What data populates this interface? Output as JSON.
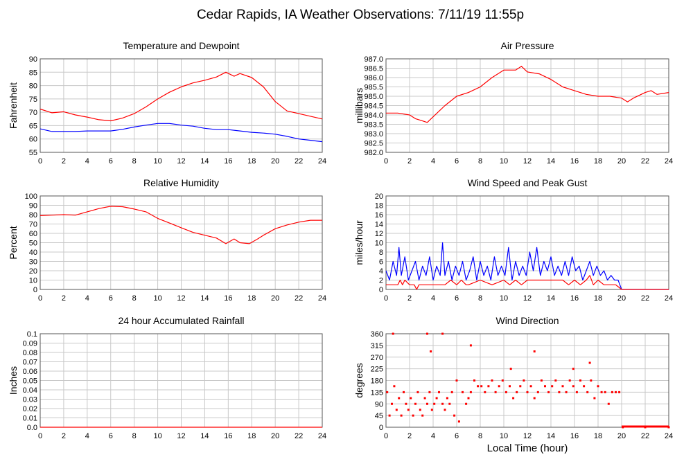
{
  "page": {
    "title": "Cedar Rapids, IA Weather Observations: 7/11/19 11:55p",
    "xlabel": "Local Time (hour)"
  },
  "chart_data": [
    {
      "id": "temp",
      "type": "line",
      "title": "Temperature and Dewpoint",
      "xlabel": "",
      "ylabel": "Fahrenheit",
      "xlim": [
        0,
        24
      ],
      "ylim": [
        55,
        90
      ],
      "xticks": [
        0,
        2,
        4,
        6,
        8,
        10,
        12,
        14,
        16,
        18,
        20,
        22,
        24
      ],
      "yticks": [
        55,
        60,
        65,
        70,
        75,
        80,
        85,
        90
      ],
      "grid": true,
      "series": [
        {
          "color": "#ff0000",
          "x": [
            0,
            1,
            2,
            3,
            4,
            5,
            6,
            7,
            8,
            9,
            10,
            11,
            12,
            13,
            14,
            15,
            15.8,
            16.5,
            17,
            18,
            19,
            20,
            21,
            22,
            23,
            24
          ],
          "y": [
            71.2,
            69.8,
            70.2,
            69,
            68.2,
            67.2,
            66.8,
            67.8,
            69.5,
            72,
            75,
            77.5,
            79.5,
            81,
            82,
            83.2,
            85,
            83.5,
            84.5,
            83,
            79.5,
            74,
            70.5,
            69.5,
            68.5,
            67.5
          ]
        },
        {
          "color": "#0000ff",
          "x": [
            0,
            1,
            2,
            3,
            4,
            5,
            6,
            7,
            8,
            9,
            10,
            11,
            12,
            13,
            14,
            15,
            16,
            17,
            18,
            19,
            20,
            21,
            22,
            23,
            24
          ],
          "y": [
            63.8,
            62.8,
            62.8,
            62.8,
            63,
            63,
            63,
            63.6,
            64.5,
            65.2,
            65.8,
            65.8,
            65.2,
            64.8,
            64,
            63.5,
            63.5,
            63,
            62.5,
            62.2,
            61.8,
            61,
            60,
            59.5,
            59
          ]
        }
      ]
    },
    {
      "id": "pressure",
      "type": "line",
      "title": "Air Pressure",
      "xlabel": "",
      "ylabel": "millibars",
      "xlim": [
        0,
        24
      ],
      "ylim": [
        982.0,
        987.0
      ],
      "xticks": [
        0,
        2,
        4,
        6,
        8,
        10,
        12,
        14,
        16,
        18,
        20,
        22,
        24
      ],
      "yticks": [
        "982.0",
        "982.5",
        "983.0",
        "983.5",
        "984.0",
        "984.5",
        "985.0",
        "985.5",
        "986.0",
        "986.5",
        "987.0"
      ],
      "grid": true,
      "series": [
        {
          "color": "#ff0000",
          "x": [
            0,
            1,
            2,
            2.5,
            3,
            3.5,
            4,
            5,
            6,
            7,
            8,
            9,
            10,
            11,
            11.5,
            12,
            13,
            14,
            15,
            16,
            17,
            18,
            19,
            20,
            20.5,
            21,
            22,
            22.5,
            23,
            24
          ],
          "y": [
            984.1,
            984.1,
            984.0,
            983.8,
            983.7,
            983.6,
            983.9,
            984.5,
            985.0,
            985.2,
            985.5,
            986.0,
            986.4,
            986.4,
            986.6,
            986.3,
            986.2,
            985.9,
            985.5,
            985.3,
            985.1,
            985.0,
            985.0,
            984.9,
            984.7,
            984.9,
            985.2,
            985.3,
            985.1,
            985.2
          ]
        }
      ]
    },
    {
      "id": "rh",
      "type": "line",
      "title": "Relative Humidity",
      "xlabel": "",
      "ylabel": "Percent",
      "xlim": [
        0,
        24
      ],
      "ylim": [
        0,
        100
      ],
      "xticks": [
        0,
        2,
        4,
        6,
        8,
        10,
        12,
        14,
        16,
        18,
        20,
        22,
        24
      ],
      "yticks": [
        0,
        10,
        20,
        30,
        40,
        50,
        60,
        70,
        80,
        90,
        100
      ],
      "grid": true,
      "series": [
        {
          "color": "#ff0000",
          "x": [
            0,
            1,
            2,
            3,
            4,
            5,
            6,
            7,
            8,
            9,
            10,
            11,
            12,
            13,
            14,
            15,
            15.8,
            16.5,
            17,
            17.8,
            18.5,
            19,
            20,
            21,
            22,
            23,
            24
          ],
          "y": [
            79,
            79.5,
            80,
            79.5,
            83,
            86.5,
            89,
            88.5,
            86,
            83,
            76,
            71,
            66,
            61,
            58,
            55,
            49,
            54,
            50,
            49,
            54,
            58,
            65,
            69,
            72,
            74,
            74
          ]
        }
      ]
    },
    {
      "id": "wind",
      "type": "line",
      "title": "Wind Speed and Peak Gust",
      "xlabel": "",
      "ylabel": "miles/hour",
      "xlim": [
        0,
        24
      ],
      "ylim": [
        0,
        20
      ],
      "xticks": [
        0,
        2,
        4,
        6,
        8,
        10,
        12,
        14,
        16,
        18,
        20,
        22,
        24
      ],
      "yticks": [
        0,
        2,
        4,
        6,
        8,
        10,
        12,
        14,
        16,
        18,
        20
      ],
      "grid": true,
      "series": [
        {
          "color": "#0000ff",
          "x": [
            0,
            0.3,
            0.6,
            0.9,
            1.1,
            1.3,
            1.6,
            1.9,
            2.2,
            2.5,
            2.8,
            3.1,
            3.4,
            3.7,
            4.0,
            4.3,
            4.6,
            4.8,
            5.0,
            5.3,
            5.6,
            5.9,
            6.2,
            6.5,
            6.8,
            7.1,
            7.4,
            7.7,
            8.0,
            8.3,
            8.6,
            8.9,
            9.2,
            9.5,
            9.8,
            10.1,
            10.4,
            10.7,
            11.0,
            11.3,
            11.6,
            11.9,
            12.2,
            12.5,
            12.8,
            13.1,
            13.4,
            13.7,
            14.0,
            14.3,
            14.6,
            14.9,
            15.2,
            15.5,
            15.8,
            16.1,
            16.4,
            16.7,
            17.0,
            17.3,
            17.6,
            17.9,
            18.2,
            18.5,
            18.8,
            19.1,
            19.4,
            19.7,
            20.0,
            22,
            24
          ],
          "y": [
            4,
            2,
            6,
            3,
            9,
            3,
            7,
            2,
            4,
            6,
            2,
            5,
            3,
            7,
            2,
            5,
            3,
            10,
            3,
            6,
            2,
            5,
            3,
            6,
            2,
            4,
            7,
            2,
            6,
            3,
            5,
            2,
            7,
            3,
            5,
            3,
            9,
            2,
            6,
            3,
            5,
            3,
            8,
            4,
            9,
            3,
            6,
            4,
            7,
            3,
            5,
            3,
            6,
            3,
            7,
            4,
            5,
            2,
            4,
            6,
            3,
            5,
            3,
            4,
            2,
            3,
            2,
            2,
            0,
            0,
            0
          ]
        },
        {
          "color": "#ff0000",
          "x": [
            0,
            0.5,
            1,
            1.2,
            1.4,
            1.6,
            2,
            2.4,
            2.6,
            2.8,
            3,
            4,
            5,
            5.5,
            6,
            6.4,
            6.8,
            7,
            8,
            9,
            10,
            10.5,
            11,
            11.5,
            12,
            13,
            14,
            15,
            15.5,
            16,
            16.5,
            17,
            17.3,
            17.6,
            18,
            18.5,
            19,
            19.5,
            20,
            22,
            24
          ],
          "y": [
            1,
            1,
            1,
            2,
            1,
            2,
            1,
            1,
            0,
            1,
            1,
            1,
            1,
            2,
            1,
            2,
            1,
            1,
            2,
            1,
            2,
            1,
            2,
            1,
            2,
            2,
            2,
            2,
            1,
            2,
            1,
            2,
            3,
            1,
            2,
            1,
            1,
            1,
            0,
            0,
            0
          ]
        }
      ]
    },
    {
      "id": "rain",
      "type": "line",
      "title": "24 hour Accumulated Rainfall",
      "xlabel": "",
      "ylabel": "Inches",
      "xlim": [
        0,
        24
      ],
      "ylim": [
        0,
        0.1
      ],
      "xticks": [
        0,
        2,
        4,
        6,
        8,
        10,
        12,
        14,
        16,
        18,
        20,
        22,
        24
      ],
      "yticks": [
        "0.0",
        "0.01",
        "0.02",
        "0.03",
        "0.04",
        "0.05",
        "0.06",
        "0.07",
        "0.08",
        "0.09",
        "0.1"
      ],
      "grid": true,
      "series": [
        {
          "color": "#ff0000",
          "x": [
            0,
            24
          ],
          "y": [
            0,
            0
          ]
        }
      ]
    },
    {
      "id": "dir",
      "type": "scatter",
      "title": "Wind Direction",
      "xlabel": "Local Time (hour)",
      "ylabel": "degrees",
      "xlim": [
        0,
        24
      ],
      "ylim": [
        0,
        360
      ],
      "xticks": [
        0,
        2,
        4,
        6,
        8,
        10,
        12,
        14,
        16,
        18,
        20,
        22,
        24
      ],
      "yticks": [
        0,
        45,
        90,
        135,
        180,
        225,
        270,
        315,
        360
      ],
      "grid": true,
      "series": [
        {
          "color": "#ff0000",
          "x": [
            0.1,
            0.3,
            0.5,
            0.7,
            0.9,
            1.1,
            1.3,
            1.5,
            1.7,
            1.9,
            2.1,
            2.3,
            2.5,
            2.7,
            2.9,
            3.1,
            3.3,
            3.5,
            3.7,
            3.9,
            4.1,
            4.3,
            4.5,
            4.8,
            5.0,
            5.2,
            5.4,
            5.6,
            5.8,
            6.0,
            6.2,
            6.5,
            6.8,
            7.0,
            7.2,
            7.5,
            7.8,
            8.1,
            8.4,
            8.7,
            9.0,
            9.3,
            9.6,
            9.9,
            10.2,
            10.5,
            10.8,
            11.1,
            11.4,
            11.7,
            12.0,
            12.3,
            12.6,
            12.9,
            13.2,
            13.5,
            13.8,
            14.1,
            14.4,
            14.7,
            15.0,
            15.3,
            15.6,
            15.9,
            16.2,
            16.5,
            16.8,
            17.1,
            17.4,
            17.7,
            18.0,
            18.3,
            18.6,
            18.9,
            19.2,
            19.5,
            19.8,
            0.6,
            3.5,
            3.8,
            4.8,
            7.2,
            10.6,
            12.6,
            15.9,
            17.3,
            20.1,
            22,
            24
          ],
          "y": [
            135,
            45,
            90,
            158,
            67,
            112,
            45,
            135,
            90,
            67,
            112,
            45,
            90,
            135,
            67,
            45,
            112,
            90,
            135,
            67,
            90,
            112,
            135,
            90,
            67,
            112,
            90,
            135,
            45,
            180,
            22,
            135,
            90,
            112,
            135,
            180,
            158,
            158,
            135,
            158,
            180,
            135,
            158,
            180,
            135,
            158,
            112,
            135,
            158,
            180,
            135,
            158,
            112,
            135,
            180,
            158,
            135,
            158,
            180,
            135,
            158,
            135,
            180,
            158,
            135,
            180,
            158,
            135,
            180,
            112,
            158,
            135,
            135,
            90,
            135,
            135,
            135,
            360,
            360,
            292,
            360,
            315,
            225,
            292,
            225,
            248,
            0,
            0,
            0
          ]
        }
      ]
    }
  ]
}
